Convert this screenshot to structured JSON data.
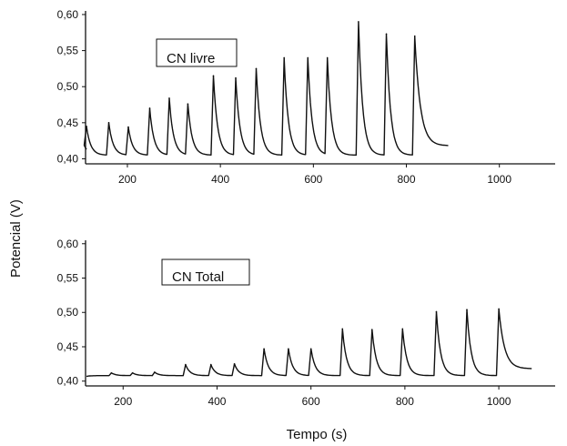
{
  "shared_ylabel": "Potencial  (V)",
  "chart_data": [
    {
      "type": "line",
      "annotation": "CN livre",
      "xlabel": "",
      "ylabel": "Potencial  (V)",
      "xlim": [
        110,
        1120
      ],
      "ylim": [
        0.393,
        0.605
      ],
      "xticks": [
        200,
        400,
        600,
        800,
        1000
      ],
      "yticks": [
        0.4,
        0.45,
        0.5,
        0.55,
        0.6
      ],
      "ytick_labels": [
        "0,40",
        "0,45",
        "0,50",
        "0,55",
        "0,60"
      ],
      "baseline": 0.405,
      "baseline_start": 0.413,
      "end_x": 890,
      "end_y": 0.418,
      "peaks": [
        {
          "x": 112,
          "y": 0.445
        },
        {
          "x": 160,
          "y": 0.45
        },
        {
          "x": 202,
          "y": 0.444
        },
        {
          "x": 248,
          "y": 0.47
        },
        {
          "x": 290,
          "y": 0.484
        },
        {
          "x": 330,
          "y": 0.476
        },
        {
          "x": 385,
          "y": 0.515
        },
        {
          "x": 433,
          "y": 0.512
        },
        {
          "x": 477,
          "y": 0.525
        },
        {
          "x": 537,
          "y": 0.54
        },
        {
          "x": 588,
          "y": 0.54
        },
        {
          "x": 630,
          "y": 0.54
        },
        {
          "x": 697,
          "y": 0.59
        },
        {
          "x": 757,
          "y": 0.573
        },
        {
          "x": 818,
          "y": 0.57
        }
      ]
    },
    {
      "type": "line",
      "annotation": "CN Total",
      "xlabel": "Tempo (s)",
      "ylabel": "Potencial  (V)",
      "xlim": [
        120,
        1120
      ],
      "ylim": [
        0.393,
        0.605
      ],
      "xticks": [
        200,
        400,
        600,
        800,
        1000
      ],
      "yticks": [
        0.4,
        0.45,
        0.5,
        0.55,
        0.6
      ],
      "ytick_labels": [
        "0,40",
        "0,45",
        "0,50",
        "0,55",
        "0,60"
      ],
      "baseline": 0.408,
      "baseline_start": 0.407,
      "end_x": 1070,
      "end_y": 0.418,
      "peaks": [
        {
          "x": 175,
          "y": 0.412
        },
        {
          "x": 220,
          "y": 0.412
        },
        {
          "x": 267,
          "y": 0.413
        },
        {
          "x": 333,
          "y": 0.424
        },
        {
          "x": 387,
          "y": 0.424
        },
        {
          "x": 437,
          "y": 0.425
        },
        {
          "x": 500,
          "y": 0.447
        },
        {
          "x": 552,
          "y": 0.447
        },
        {
          "x": 600,
          "y": 0.447
        },
        {
          "x": 667,
          "y": 0.476
        },
        {
          "x": 730,
          "y": 0.475
        },
        {
          "x": 795,
          "y": 0.476
        },
        {
          "x": 867,
          "y": 0.501
        },
        {
          "x": 932,
          "y": 0.504
        },
        {
          "x": 1000,
          "y": 0.505
        }
      ]
    }
  ]
}
